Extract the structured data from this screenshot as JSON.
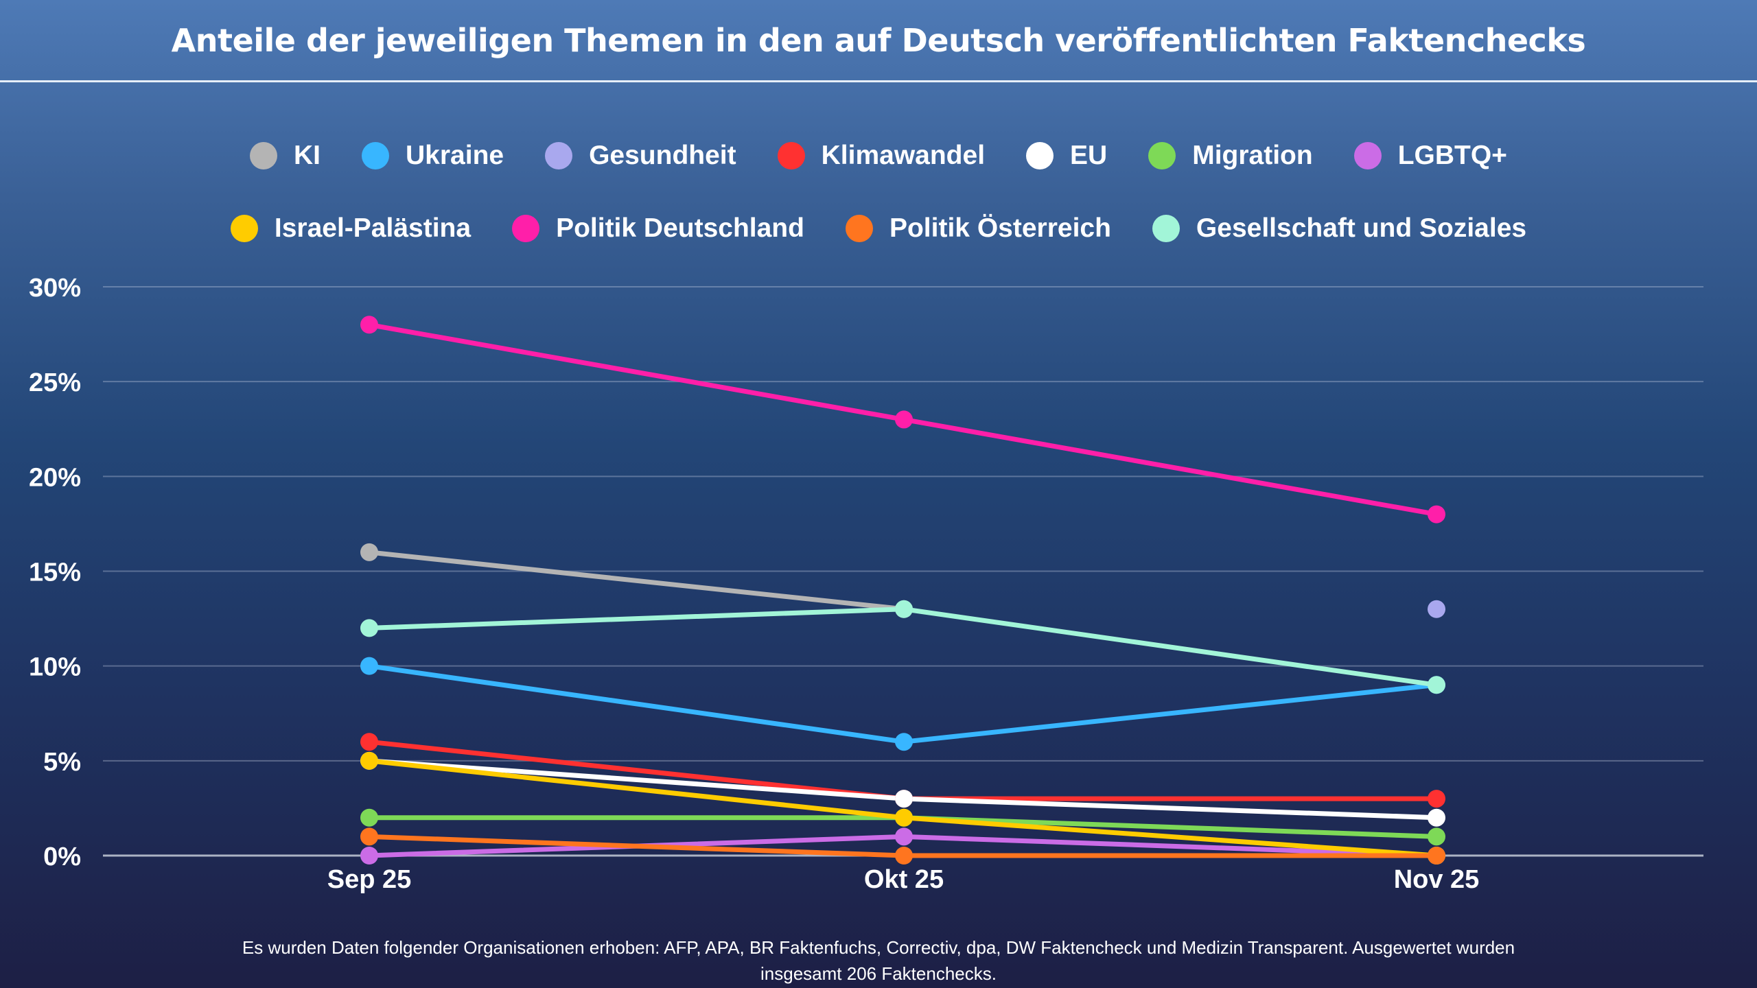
{
  "title": "Anteile der jeweiligen Themen in den auf Deutsch veröffentlichten Faktenchecks",
  "footer": "Es wurden Daten folgender Organisationen erhoben: AFP, APA, BR Faktenfuchs, Correctiv, dpa, DW Faktencheck und Medizin Transparent. Ausgewertet wurden insgesamt 206 Faktenchecks.",
  "chart_data": {
    "type": "line",
    "title": "Anteile der jeweiligen Themen in den auf Deutsch veröffentlichten Faktenchecks",
    "xlabel": "",
    "ylabel": "",
    "categories": [
      "Sep 25",
      "Okt 25",
      "Nov 25"
    ],
    "ylim": [
      0,
      30
    ],
    "yticks": [
      0,
      5,
      10,
      15,
      20,
      25,
      30
    ],
    "ytick_labels": [
      "0%",
      "5%",
      "10%",
      "15%",
      "20%",
      "25%",
      "30%"
    ],
    "grid": true,
    "legend_position": "top-center",
    "series": [
      {
        "name": "KI",
        "color": "#b4b4b4",
        "values": [
          16,
          13,
          null
        ]
      },
      {
        "name": "Ukraine",
        "color": "#38b6ff",
        "values": [
          10,
          6,
          9
        ]
      },
      {
        "name": "Gesundheit",
        "color": "#a9a8ee",
        "values": [
          null,
          null,
          13
        ]
      },
      {
        "name": "Klimawandel",
        "color": "#ff3131",
        "values": [
          6,
          3,
          3
        ]
      },
      {
        "name": "EU",
        "color": "#ffffff",
        "values": [
          5,
          3,
          2
        ]
      },
      {
        "name": "Migration",
        "color": "#7ed957",
        "values": [
          2,
          2,
          1
        ]
      },
      {
        "name": "LGBTQ+",
        "color": "#cb6ce6",
        "values": [
          0,
          1,
          0
        ]
      },
      {
        "name": "Israel-Palästina",
        "color": "#ffcc00",
        "values": [
          5,
          2,
          0
        ]
      },
      {
        "name": "Politik Deutschland",
        "color": "#ff1fa9",
        "values": [
          28,
          23,
          18
        ]
      },
      {
        "name": "Politik Österreich",
        "color": "#ff751f",
        "values": [
          1,
          0,
          0
        ]
      },
      {
        "name": "Gesellschaft und Soziales",
        "color": "#a2f5d8",
        "values": [
          12,
          13,
          9
        ]
      }
    ]
  }
}
